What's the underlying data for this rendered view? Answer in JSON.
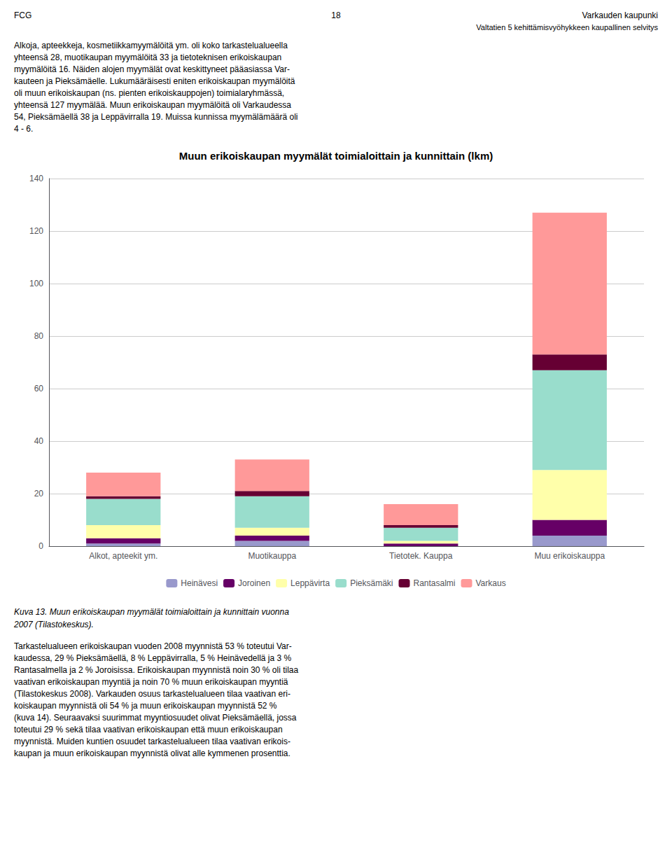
{
  "chart_data": {
    "type": "bar",
    "title": "Muun erikoiskaupan myymälät toimialoittain ja kunnittain (lkm)",
    "categories": [
      "Alkot, apteekit ym.",
      "Muotikauppa",
      "Tietotek. Kauppa",
      "Muu erikoiskauppa"
    ],
    "series": [
      {
        "name": "Heinävesi",
        "color": "#9999cc",
        "values": [
          1,
          2,
          0,
          4
        ]
      },
      {
        "name": "Joroinen",
        "color": "#660066",
        "values": [
          2,
          2,
          1,
          6
        ]
      },
      {
        "name": "Leppävirta",
        "color": "#ffffaa",
        "values": [
          5,
          3,
          1,
          19
        ]
      },
      {
        "name": "Pieksämäki",
        "color": "#99ddcc",
        "values": [
          10,
          12,
          5,
          38
        ]
      },
      {
        "name": "Rantasalmi",
        "color": "#660033",
        "values": [
          1,
          2,
          1,
          6
        ]
      },
      {
        "name": "Varkaus",
        "color": "#ff9999",
        "values": [
          9,
          12,
          8,
          54
        ]
      }
    ],
    "stacked": true,
    "ylim": [
      0,
      140
    ],
    "yticks": [
      0,
      20,
      40,
      60,
      80,
      100,
      120,
      140
    ],
    "grid": true,
    "legend": "bottom",
    "annotations": [
      "FCG",
      "18",
      "Varkauden kaupunki",
      "Valtatien 5 kehittämisvyöhykkeen kaupallinen selvitys",
      "Alkoja, apteekkeja, kosmetiikkamyymälöitä ym. oli koko tarkastelualueella\nyhteensä 28, muotikaupan myymälöitä 33 ja tietoteknisen erikoiskaupan\nmyymälöitä 16. Näiden alojen myymälät ovat keskittyneet pääasiassa Var-\nkauteen ja Pieksämäelle. Lukumääräisesti eniten erikoiskaupan myymälöitä\noli muun erikoiskaupan (ns. pienten erikoiskauppojen) toimialaryhmässä,\nyhteensä 127 myymälää. Muun erikoiskaupan myymälöitä oli Varkaudessa\n54, Pieksämäellä 38 ja Leppävirralla 19. Muissa kunnissa myymälämäärä oli\n4 - 6.",
      "Kuva 13. Muun erikoiskaupan myymälät toimialoittain ja kunnittain vuonna",
      "2007 (Tilastokeskus).",
      "Tarkastelualueen erikoiskaupan vuoden 2008 myynnistä 53 % toteutui Var-\nkaudessa, 29 % Pieksämäellä, 8 % Leppävirralla, 5 % Heinävedellä ja 3 %\nRantasalmella ja 2 % Joroisissa. Erikoiskaupan myynnistä noin 30 % oli tilaa\nvaativan erikoiskaupan myyntiä ja noin 70 % muun erikoiskaupan myyntiä\n(Tilastokeskus 2008). Varkauden osuus tarkastelualueen tilaa vaativan eri-\nkoiskaupan myynnistä oli 54 % ja muun erikoiskaupan myynnistä 52 %\n(kuva 14). Seuraavaksi suurimmat myyntiosuudet olivat Pieksämäellä, jossa\ntoteutui 29 % sekä tilaa vaativan erikoiskaupan että muun erikoiskaupan\nmyynnistä. Muiden kuntien osuudet tarkastelualueen tilaa vaativan erikois-\nkaupan ja muun erikoiskaupan myynnistä olivat alle kymmenen prosenttia."
    ]
  }
}
